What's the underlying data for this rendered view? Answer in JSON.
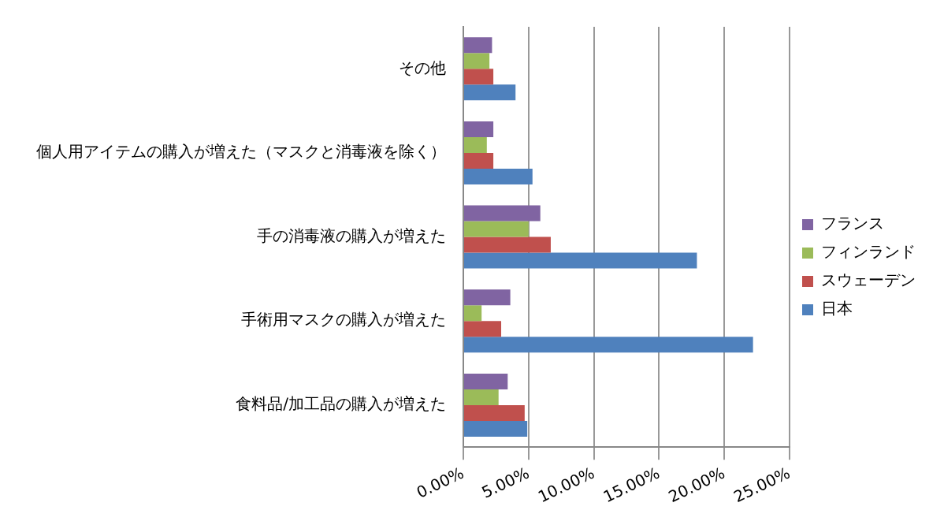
{
  "chart_data": {
    "type": "bar",
    "orientation": "horizontal",
    "categories": [
      "その他",
      "個人用アイテムの購入が増えた（マスクと消毒液を除く）",
      "手の消毒液の購入が増えた",
      "手術用マスクの購入が増えた",
      "食料品/加工品の購入が増えた"
    ],
    "series": [
      {
        "name": "フランス",
        "color": "#8064a2",
        "values": [
          2.2,
          2.3,
          5.9,
          3.6,
          3.4
        ]
      },
      {
        "name": "フィンランド",
        "color": "#9bbb59",
        "values": [
          2.0,
          1.8,
          5.0,
          1.4,
          2.7
        ]
      },
      {
        "name": "スウェーデン",
        "color": "#c0504d",
        "values": [
          2.3,
          2.3,
          6.7,
          2.9,
          4.7
        ]
      },
      {
        "name": "日本",
        "color": "#4f81bd",
        "values": [
          4.0,
          5.3,
          17.9,
          22.2,
          4.9
        ]
      }
    ],
    "xlim": [
      0,
      25
    ],
    "xticks": [
      {
        "value": 0,
        "label": "0.00%"
      },
      {
        "value": 5,
        "label": "5.00%"
      },
      {
        "value": 10,
        "label": "10.00%"
      },
      {
        "value": 15,
        "label": "15.00%"
      },
      {
        "value": 20,
        "label": "20.00%"
      },
      {
        "value": 25,
        "label": "25.00%"
      }
    ],
    "grid": "x",
    "legend": "right"
  }
}
